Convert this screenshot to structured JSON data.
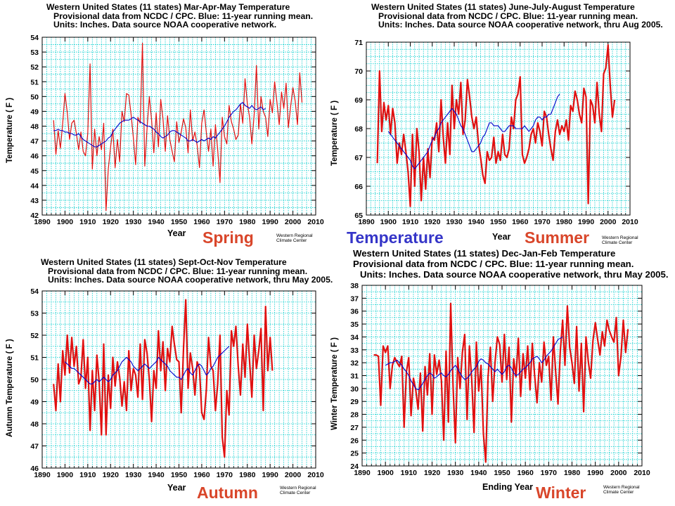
{
  "chart_data": [
    {
      "type": "line",
      "title": [
        "Western United States (11 states) Mar-Apr-May Temperature",
        "Provisional data from NCDC / CPC.  Blue:  11-year running mean.",
        "Units:  Inches.  Data source NOAA  cooperative network."
      ],
      "xlabel": "Year",
      "ylabel": "Temperature  ( F )",
      "xlim": [
        1890,
        2010
      ],
      "ylim": [
        42,
        54
      ],
      "xticks": [
        1890,
        1900,
        1910,
        1920,
        1930,
        1940,
        1950,
        1960,
        1970,
        1980,
        1990,
        2000,
        2010
      ],
      "yticks": [
        42,
        43,
        44,
        45,
        46,
        47,
        48,
        49,
        50,
        51,
        52,
        53,
        54
      ],
      "line_width": 1.2,
      "series": [
        {
          "color": "#e01010",
          "x_start": 1895,
          "values": [
            48.4,
            46.1,
            47.7,
            46.5,
            48.2,
            50.2,
            48.9,
            47.1,
            48.2,
            48.4,
            47.5,
            46.4,
            47.6,
            46.3,
            46.0,
            47.5,
            52.2,
            45.1,
            47.8,
            46.0,
            47.3,
            46.4,
            48.2,
            42.3,
            45.1,
            46.6,
            47.8,
            45.2,
            47.1,
            45.6,
            49.0,
            48.3,
            50.2,
            50.1,
            48.8,
            47.2,
            45.4,
            48.6,
            48.2,
            53.6,
            45.3,
            47.8,
            50.0,
            48.4,
            46.2,
            48.9,
            46.6,
            49.8,
            48.5,
            46.3,
            48.7,
            47.1,
            46.3,
            45.6,
            48.3,
            46.9,
            47.6,
            48.5,
            47.9,
            46.2,
            49.1,
            47.0,
            47.6,
            46.7,
            45.2,
            48.2,
            49.1,
            47.6,
            46.3,
            47.8,
            45.3,
            48.1,
            46.4,
            44.2,
            48.6,
            47.3,
            46.8,
            49.4,
            48.3,
            47.8,
            47.1,
            47.4,
            49.5,
            48.2,
            51.2,
            49.5,
            48.6,
            46.8,
            48.8,
            52.1,
            47.8,
            50.0,
            49.0,
            48.6,
            47.3,
            49.8,
            48.9,
            51.0,
            49.6,
            48.1,
            50.3,
            49.2,
            50.9,
            47.9,
            49.3,
            50.6,
            49.7,
            48.1,
            51.6,
            49.6
          ]
        },
        {
          "color": "#0000cc",
          "x_start": 1895,
          "values": [
            47.7,
            47.7,
            47.8,
            47.7,
            47.7,
            47.6,
            47.6,
            47.5,
            47.5,
            47.4,
            47.4,
            47.5,
            47.3,
            47.1,
            47.0,
            46.9,
            46.8,
            46.7,
            46.6,
            46.6,
            46.7,
            46.8,
            46.9,
            47.0,
            47.2,
            47.3,
            47.6,
            47.8,
            48.0,
            48.2,
            48.3,
            48.4,
            48.4,
            48.4,
            48.5,
            48.6,
            48.5,
            48.4,
            48.3,
            48.2,
            48.1,
            48.0,
            48.0,
            47.9,
            47.8,
            47.6,
            47.5,
            47.3,
            47.2,
            47.3,
            47.4,
            47.6,
            47.7,
            47.7,
            47.6,
            47.5,
            47.4,
            47.3,
            47.2,
            47.0,
            47.0,
            47.1,
            47.0,
            46.9,
            47.0,
            47.1,
            47.0,
            47.1,
            47.2,
            47.1,
            47.3,
            47.2,
            47.4,
            47.6,
            47.8,
            48.0,
            48.3,
            48.6,
            48.8,
            49.0,
            49.1,
            49.3,
            49.5,
            49.6,
            49.4,
            49.3,
            49.2,
            49.4,
            49.2,
            49.1,
            49.2,
            49.3,
            49.1,
            49.2
          ]
        }
      ]
    },
    {
      "type": "line",
      "title": [
        "Western United States (11 states) June-July-August Temperature",
        "Provisional data from NCDC / CPC.  Blue:  11-year running mean.",
        "Units:  Inches.  Data source NOAA  cooperative network, thru Aug 2005."
      ],
      "xlabel": "Year",
      "ylabel": "Temperature  ( F )",
      "xlim": [
        1890,
        2010
      ],
      "ylim": [
        65,
        71
      ],
      "xticks": [
        1890,
        1900,
        1910,
        1920,
        1930,
        1940,
        1950,
        1960,
        1970,
        1980,
        1990,
        2000,
        2010
      ],
      "yticks": [
        65,
        66,
        67,
        68,
        69,
        70,
        71
      ],
      "line_width": 2.2,
      "series": [
        {
          "color": "#e01010",
          "x_start": 1895,
          "values": [
            66.8,
            70.0,
            67.9,
            68.9,
            68.3,
            68.8,
            67.8,
            68.7,
            68.2,
            66.8,
            67.5,
            67.1,
            67.8,
            67.2,
            66.5,
            65.3,
            67.8,
            66.0,
            68.0,
            67.2,
            65.5,
            67.0,
            65.9,
            67.3,
            66.3,
            67.7,
            67.6,
            68.2,
            67.2,
            69.0,
            67.7,
            66.8,
            68.2,
            67.1,
            69.5,
            68.0,
            69.0,
            68.5,
            69.6,
            67.8,
            68.3,
            69.7,
            69.1,
            68.4,
            68.0,
            68.4,
            67.5,
            67.0,
            66.4,
            66.1,
            67.2,
            66.9,
            67.0,
            67.7,
            66.8,
            67.2,
            66.9,
            67.8,
            67.1,
            67.0,
            67.3,
            68.4,
            68.0,
            69.0,
            69.2,
            69.8,
            67.1,
            66.8,
            67.0,
            67.3,
            67.8,
            68.0,
            67.5,
            68.2,
            67.9,
            67.4,
            68.6,
            68.4,
            67.8,
            67.3,
            66.9,
            67.9,
            68.3,
            67.8,
            68.1,
            67.9,
            68.3,
            67.6,
            68.8,
            68.6,
            69.3,
            69.0,
            68.5,
            68.2,
            69.4,
            69.1,
            65.4,
            69.0,
            68.8,
            68.2,
            69.6,
            68.5,
            67.9,
            69.9,
            70.1,
            70.9,
            69.5,
            68.4,
            69.0
          ]
        },
        {
          "color": "#0000cc",
          "x_start": 1900,
          "values": [
            67.9,
            67.8,
            67.7,
            67.6,
            67.5,
            67.4,
            67.3,
            67.2,
            67.1,
            67.0,
            66.9,
            66.7,
            66.6,
            66.7,
            66.8,
            66.9,
            67.0,
            67.1,
            67.2,
            67.4,
            67.6,
            67.7,
            67.9,
            68.0,
            68.2,
            68.3,
            68.4,
            68.5,
            68.6,
            68.7,
            68.6,
            68.5,
            68.3,
            68.1,
            68.0,
            67.8,
            67.6,
            67.4,
            67.2,
            67.2,
            67.3,
            67.4,
            67.5,
            67.7,
            67.8,
            68.0,
            68.2,
            68.2,
            68.1,
            68.1,
            68.1,
            68.0,
            67.9,
            67.9,
            68.0,
            68.1,
            68.1,
            68.1,
            68.0,
            68.0,
            68.0,
            68.0,
            68.1,
            68.0,
            67.9,
            68.0,
            68.1,
            68.3,
            68.4,
            68.4,
            68.3,
            68.4,
            68.4,
            68.5,
            68.5,
            68.7,
            68.9,
            69.1,
            69.2
          ]
        }
      ]
    },
    {
      "type": "line",
      "title": [
        "Western United States (11 states) Sept-Oct-Nov Temperature",
        "Provisional data from NCDC / CPC.  Blue:  11-year running mean.",
        "Units:  Inches.  Data source NOAA  cooperative network, thru May 2005."
      ],
      "xlabel": "Year",
      "ylabel": "Autumn Temperature  ( F )",
      "xlim": [
        1890,
        2010
      ],
      "ylim": [
        46,
        54
      ],
      "xticks": [
        1890,
        1900,
        1910,
        1920,
        1930,
        1940,
        1950,
        1960,
        1970,
        1980,
        1990,
        2000,
        2010
      ],
      "yticks": [
        46,
        47,
        48,
        49,
        50,
        51,
        52,
        53,
        54
      ],
      "line_width": 2.2,
      "series": [
        {
          "color": "#e01010",
          "x_start": 1895,
          "values": [
            49.8,
            48.6,
            50.7,
            49.0,
            51.3,
            50.2,
            52.0,
            50.3,
            51.9,
            50.6,
            51.5,
            49.8,
            50.1,
            51.8,
            49.6,
            51.0,
            47.7,
            50.4,
            48.6,
            51.1,
            49.9,
            47.5,
            51.6,
            47.5,
            50.2,
            48.7,
            51.0,
            49.7,
            50.8,
            50.1,
            48.8,
            49.9,
            48.6,
            51.3,
            49.5,
            50.5,
            50.2,
            49.2,
            51.6,
            49.1,
            51.8,
            51.2,
            50.0,
            48.1,
            50.4,
            49.6,
            52.2,
            50.4,
            51.7,
            49.5,
            51.4,
            50.8,
            52.4,
            51.6,
            50.9,
            50.8,
            48.5,
            51.4,
            53.6,
            49.6,
            51.2,
            50.5,
            49.3,
            50.8,
            50.5,
            48.5,
            48.2,
            49.5,
            51.9,
            50.6,
            50.4,
            48.6,
            49.8,
            52.0,
            47.4,
            46.5,
            49.5,
            48.4,
            52.2,
            51.5,
            52.4,
            50.6,
            49.3,
            51.6,
            50.1,
            52.5,
            50.8,
            49.2,
            52.0,
            50.5,
            51.3,
            52.3,
            48.6,
            53.3,
            50.4,
            51.9,
            50.4
          ]
        },
        {
          "color": "#0000cc",
          "x_start": 1900,
          "values": [
            50.8,
            50.7,
            50.6,
            50.5,
            50.5,
            50.4,
            50.3,
            50.2,
            50.1,
            50.0,
            49.9,
            49.8,
            49.8,
            49.9,
            50.0,
            49.9,
            50.0,
            50.1,
            50.0,
            49.9,
            50.0,
            50.2,
            50.3,
            50.4,
            50.6,
            50.8,
            50.9,
            51.0,
            50.9,
            50.8,
            50.6,
            50.5,
            50.4,
            50.5,
            50.6,
            50.7,
            50.6,
            50.5,
            50.6,
            50.7,
            50.8,
            51.0,
            50.9,
            50.8,
            50.7,
            50.6,
            50.4,
            50.3,
            50.2,
            50.1,
            50.1,
            50.0,
            50.2,
            50.4,
            50.5,
            50.3,
            50.2,
            50.4,
            50.6,
            50.7,
            50.6,
            50.4,
            50.2,
            50.3,
            50.5,
            50.6,
            50.8,
            51.0,
            51.1,
            51.2,
            51.3,
            51.4,
            51.5
          ]
        }
      ]
    },
    {
      "type": "line",
      "title": [
        "Western United States (11 states) Dec-Jan-Feb Temperature",
        "Provisional data from NCDC / CPC.  Blue:  11-year running mean.",
        "Units:  Inches.  Data source NOAA  cooperative network, thru May 2005."
      ],
      "xlabel": "Ending Year",
      "ylabel": "Winter Temperature  ( F )",
      "xlim": [
        1890,
        2010
      ],
      "ylim": [
        24,
        38
      ],
      "xticks": [
        1890,
        1900,
        1910,
        1920,
        1930,
        1940,
        1950,
        1960,
        1970,
        1980,
        1990,
        2000,
        2010
      ],
      "yticks": [
        24,
        25,
        26,
        27,
        28,
        29,
        30,
        31,
        32,
        33,
        34,
        35,
        36,
        37,
        38
      ],
      "line_width": 2.2,
      "series": [
        {
          "color": "#e01010",
          "x_start": 1895,
          "values": [
            32.6,
            32.6,
            32.5,
            28.7,
            33.3,
            32.8,
            33.3,
            30.0,
            31.8,
            32.4,
            32.0,
            31.7,
            32.5,
            27.0,
            31.3,
            32.4,
            27.9,
            30.8,
            29.9,
            28.4,
            31.2,
            26.7,
            31.7,
            29.5,
            32.7,
            28.0,
            32.6,
            31.1,
            32.2,
            30.6,
            26.0,
            32.9,
            27.4,
            36.6,
            30.1,
            25.8,
            32.4,
            30.0,
            32.8,
            34.2,
            27.6,
            33.3,
            30.7,
            26.6,
            33.6,
            29.8,
            31.8,
            26.5,
            24.3,
            30.9,
            33.2,
            29.0,
            32.0,
            34.0,
            33.4,
            30.5,
            34.2,
            30.7,
            33.2,
            27.4,
            32.3,
            30.9,
            33.9,
            29.4,
            32.7,
            30.8,
            33.3,
            29.9,
            33.5,
            31.0,
            28.9,
            32.0,
            30.5,
            33.6,
            31.8,
            32.5,
            29.1,
            34.0,
            31.3,
            28.8,
            32.9,
            35.3,
            31.8,
            36.4,
            33.2,
            32.0,
            30.4,
            34.8,
            29.8,
            33.5,
            28.2,
            34.0,
            32.1,
            30.8,
            33.7,
            35.1,
            33.8,
            32.6,
            34.4,
            33.3,
            35.3,
            34.5,
            34.0,
            33.6,
            35.5,
            31.0,
            32.5,
            35.3,
            32.8,
            34.6
          ]
        },
        {
          "color": "#0000cc",
          "x_start": 1900,
          "values": [
            31.8,
            31.9,
            32.0,
            32.0,
            32.1,
            32.2,
            32.0,
            31.8,
            31.5,
            31.3,
            31.0,
            30.6,
            30.3,
            30.0,
            29.9,
            30.1,
            30.4,
            30.7,
            31.0,
            31.2,
            31.1,
            30.8,
            30.9,
            31.1,
            31.2,
            31.0,
            30.9,
            31.1,
            31.4,
            31.6,
            31.8,
            31.5,
            31.2,
            30.9,
            30.7,
            30.8,
            31.0,
            31.3,
            31.5,
            31.7,
            32.1,
            32.3,
            32.2,
            32.0,
            31.9,
            31.7,
            31.5,
            31.3,
            31.5,
            31.3,
            31.1,
            31.3,
            31.7,
            31.8,
            31.6,
            31.2,
            31.0,
            31.1,
            31.3,
            31.5,
            31.6,
            31.8,
            32.0,
            32.3,
            32.4,
            32.5,
            32.3,
            32.0,
            32.2,
            32.5,
            32.7,
            32.9,
            33.2,
            33.5,
            33.8,
            33.9,
            34.0
          ]
        }
      ]
    }
  ],
  "season_labels": {
    "spring": "Spring",
    "temperature": "Temperature",
    "summer": "Summer",
    "autumn": "Autumn",
    "winter": "Winter"
  },
  "credit": [
    "Western Regional",
    "Climate Center"
  ],
  "colors": {
    "grid": "#00cccc",
    "plot_bg": "#ffffff",
    "season_label": "#d9462a",
    "temperature_label": "#3535c8"
  }
}
